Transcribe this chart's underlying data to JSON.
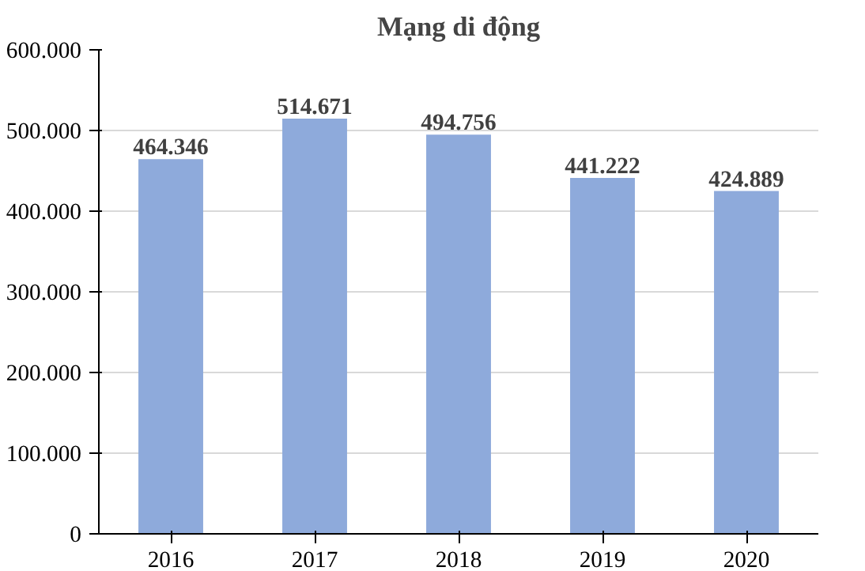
{
  "chart_data": {
    "type": "bar",
    "title": "Mạng di động",
    "categories": [
      "2016",
      "2017",
      "2018",
      "2019",
      "2020"
    ],
    "values": [
      464346,
      514671,
      494756,
      441222,
      424889
    ],
    "value_labels": [
      "464.346",
      "514.671",
      "494.756",
      "441.222",
      "424.889"
    ],
    "color": "#8eaadb",
    "ylim": [
      0,
      600000
    ],
    "yticks": [
      0,
      {
        "value": 100000,
        "label": "100.000"
      },
      {
        "value": 200000,
        "label": "200.000"
      },
      {
        "value": 300000,
        "label": "300.000"
      },
      {
        "value": 400000,
        "label": "400.000"
      },
      {
        "value": 500000,
        "label": "500.000"
      },
      {
        "value": 600000,
        "label": "600.000"
      }
    ],
    "grid": "y"
  }
}
